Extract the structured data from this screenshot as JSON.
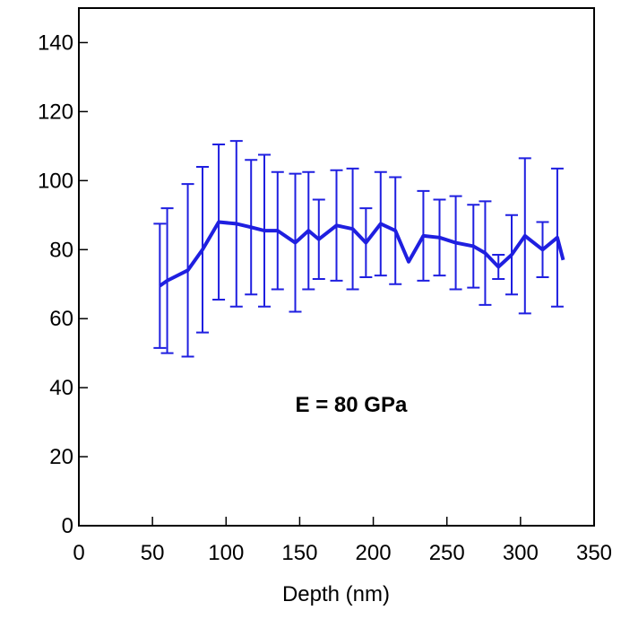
{
  "chart_data": {
    "type": "line",
    "xlabel": "Depth (nm)",
    "annotation": {
      "text": "E = 80 GPa",
      "x": 185,
      "y": 33
    },
    "xlim": [
      0,
      350
    ],
    "ylim": [
      0,
      150
    ],
    "xticks": [
      0,
      50,
      100,
      150,
      200,
      250,
      300,
      350
    ],
    "yticks": [
      0,
      20,
      40,
      60,
      80,
      100,
      120,
      140
    ],
    "series": [
      {
        "color": "#1f1fe0",
        "x": [
          55,
          60,
          74,
          84,
          95,
          107,
          117,
          126,
          135,
          147,
          156,
          163,
          175,
          186,
          195,
          205,
          215,
          224,
          234,
          245,
          256,
          268,
          276,
          285,
          294,
          303,
          315,
          325,
          329
        ],
        "values": [
          69.5,
          71,
          74,
          80,
          88,
          87.5,
          86.5,
          85.5,
          85.5,
          82,
          85.5,
          83,
          87,
          86,
          82,
          87.5,
          85.5,
          76.5,
          84,
          83.5,
          82,
          81,
          79,
          75,
          78.5,
          84,
          80,
          83.5,
          77
        ],
        "errors": [
          18,
          21,
          25,
          24,
          22.5,
          24,
          19.5,
          22,
          17,
          20,
          17,
          11.5,
          16,
          17.5,
          10,
          15,
          15.5,
          null,
          13,
          11,
          13.5,
          12,
          15,
          3.5,
          11.5,
          22.5,
          8,
          20,
          null
        ]
      }
    ]
  }
}
